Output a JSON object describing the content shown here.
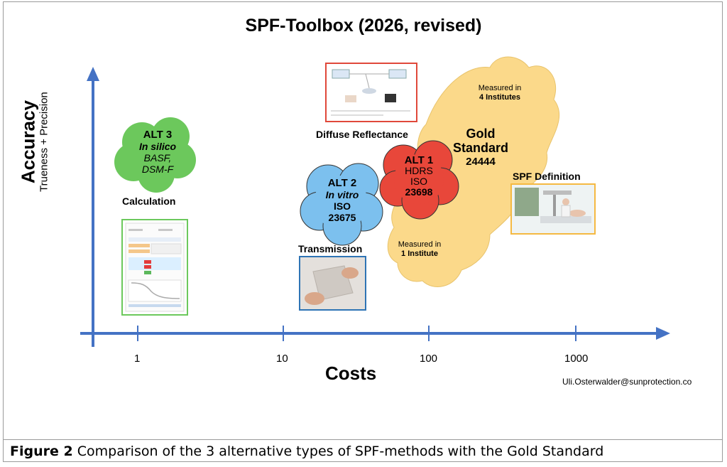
{
  "title": "SPF-Toolbox (2026, revised)",
  "axes": {
    "y_label": "Accuracy",
    "y_sublabel": "Trueness + Precision",
    "x_label": "Costs",
    "x_ticks": [
      "1",
      "10",
      "100",
      "1000"
    ]
  },
  "nodes": {
    "alt3": {
      "lines": [
        "ALT 3",
        "In silico",
        "BASF,",
        "DSM-F"
      ],
      "color": "#6cc85c",
      "label": "Calculation"
    },
    "alt2": {
      "lines": [
        "ALT 2",
        "In vitro",
        "ISO",
        "23675"
      ],
      "color": "#7cc0ee",
      "label": "Transmission"
    },
    "alt1": {
      "lines": [
        "ALT 1",
        "HDRS",
        "ISO",
        "23698"
      ],
      "color": "#e8473a"
    },
    "gold": {
      "lines": [
        "Gold",
        "Standard",
        "24444"
      ],
      "color": "#fbd98a",
      "measured_top": [
        "Measured in",
        "4 Institutes"
      ],
      "measured_bottom": [
        "Measured in",
        "1 Institute"
      ]
    },
    "diffuse": {
      "label": "Diffuse Reflectance"
    },
    "spf_def": {
      "label": "SPF Definition"
    }
  },
  "contact": "Uli.Osterwalder@sunprotection.co",
  "caption": {
    "prefix": "Figure 2",
    "text": " Comparison of the 3 alternative types of SPF-methods with the Gold Standard"
  },
  "colors": {
    "axis": "#4472c4",
    "diffuse_border": "#e0483a",
    "alt2_border": "#2e74b5",
    "calc_border": "#6cc85c",
    "spf_border": "#f5b942"
  }
}
